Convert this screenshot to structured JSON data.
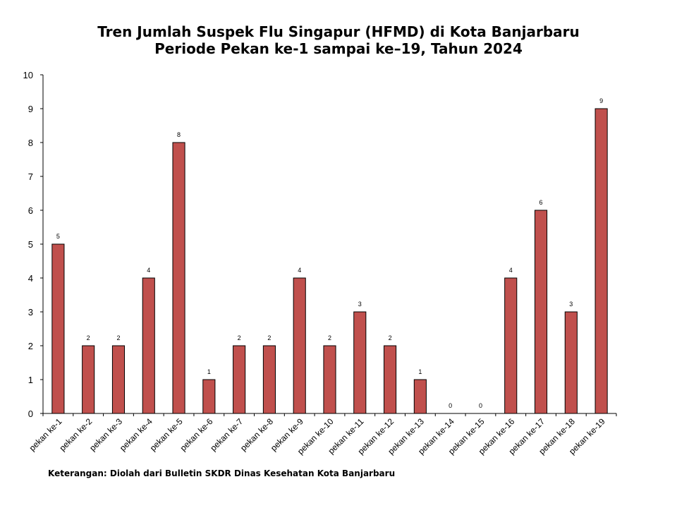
{
  "chart_data": {
    "type": "bar",
    "title": "Tren Jumlah Suspek Flu Singapur (HFMD) di Kota Banjarbaru",
    "subtitle": "Periode Pekan ke-1 sampai ke–19, Tahun 2024",
    "categories": [
      "pekan ke-1",
      "pekan ke-2",
      "pekan ke-3",
      "pekan ke-4",
      "pekan ke-5",
      "pekan ke-6",
      "pekan ke-7",
      "pekan ke-8",
      "pekan ke-9",
      "pekan ke-10",
      "pekan ke-11",
      "pekan ke-12",
      "pekan ke-13",
      "pekan ke-14",
      "pekan ke-15",
      "pekan ke-16",
      "pekan ke-17",
      "pekan ke-18",
      "pekan ke-19"
    ],
    "values": [
      5,
      2,
      2,
      4,
      8,
      1,
      2,
      2,
      4,
      2,
      3,
      2,
      1,
      0,
      0,
      4,
      6,
      3,
      9
    ],
    "ylim": [
      0,
      10
    ],
    "yticks": [
      0,
      1,
      2,
      3,
      4,
      5,
      6,
      7,
      8,
      9,
      10
    ],
    "bar_color": "#c0504d",
    "grid": false,
    "data_labels": true,
    "legend": "none"
  },
  "footnote": "Keterangan: Diolah dari Bulletin SKDR Dinas Kesehatan Kota Banjarbaru"
}
